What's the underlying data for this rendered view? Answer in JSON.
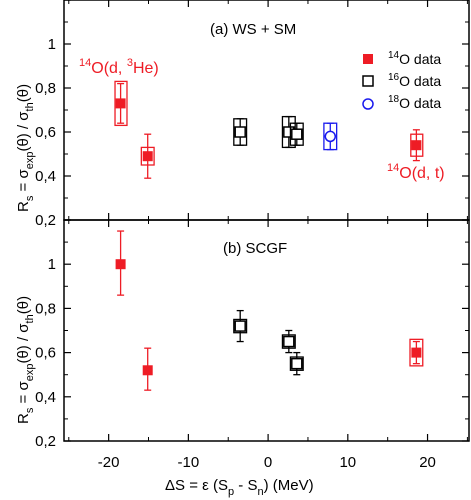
{
  "chart_data": {
    "type": "scatter",
    "xlabel": "ΔS = ε (S",
    "xlabel_sub1": "p",
    "xlabel_mid": " - S",
    "xlabel_sub2": "n",
    "xlabel_end": ") (MeV)",
    "x_ticks": [
      "-20",
      "-10",
      "0",
      "10",
      "20"
    ],
    "xlim": [
      -25.6,
      25.2
    ],
    "panels": [
      {
        "title": "(a) WS + SM",
        "ylim": [
          0.2,
          1.2
        ],
        "y_ticks": [
          "0,2",
          "0,4",
          "0,6",
          "0,8",
          "1"
        ],
        "ylabel": "R",
        "ylabel_rest": " = σ",
        "ylabel_sub_exp": "exp",
        "ylabel_mid": "(θ) / σ",
        "ylabel_sub_th": "th",
        "ylabel_end": "(θ)",
        "annotations": [
          {
            "sup": "14",
            "text": "O(d, ",
            "sup2": "3",
            "text2": "He)"
          },
          {
            "sup": "14",
            "text": "O(d, t)"
          }
        ],
        "legend": {
          "placement": "top-right",
          "entries": [
            {
              "sup": "14",
              "text": "O data"
            },
            {
              "sup": "16",
              "text": "O data"
            },
            {
              "sup": "18",
              "text": "O data"
            }
          ]
        },
        "series": [
          {
            "nucleus": "14O",
            "points": [
              {
                "x": -18.5,
                "y": 0.73,
                "err": [
                  0.64,
                  0.82
                ],
                "box": [
                  -19.2,
                  -17.7,
                  0.63,
                  0.83
                ]
              },
              {
                "x": -15.1,
                "y": 0.49,
                "err": [
                  0.39,
                  0.59
                ],
                "box": [
                  -15.9,
                  -14.3,
                  0.45,
                  0.53
                ]
              },
              {
                "x": 18.6,
                "y": 0.54,
                "err": [
                  0.47,
                  0.61
                ],
                "box": [
                  17.9,
                  19.4,
                  0.49,
                  0.59
                ]
              }
            ]
          },
          {
            "nucleus": "16O",
            "points": [
              {
                "x": -3.5,
                "y": 0.6,
                "err": [
                  0.54,
                  0.66
                ],
                "box": [
                  -4.3,
                  -2.7,
                  0.54,
                  0.66
                ]
              },
              {
                "x": 2.6,
                "y": 0.6,
                "err": [
                  0.53,
                  0.67
                ],
                "box": [
                  1.8,
                  3.4,
                  0.53,
                  0.67
                ]
              },
              {
                "x": 3.6,
                "y": 0.59,
                "err": [
                  0.54,
                  0.64
                ],
                "box": [
                  2.8,
                  4.4,
                  0.54,
                  0.64
                ]
              }
            ]
          },
          {
            "nucleus": "18O",
            "points": [
              {
                "x": 7.8,
                "y": 0.58,
                "err": [
                  0.52,
                  0.64
                ],
                "box": [
                  7.0,
                  8.6,
                  0.52,
                  0.64
                ]
              }
            ]
          }
        ]
      },
      {
        "title": "(b) SCGF",
        "ylim": [
          0.2,
          1.2
        ],
        "y_ticks": [
          "0,2",
          "0,4",
          "0,6",
          "0,8",
          "1"
        ],
        "ylabel": "R",
        "ylabel_rest": " = σ",
        "ylabel_sub_exp": "exp",
        "ylabel_mid": "(θ) / σ",
        "ylabel_sub_th": "th",
        "ylabel_end": "(θ)",
        "series": [
          {
            "nucleus": "14O",
            "points": [
              {
                "x": -18.5,
                "y": 1.0,
                "err": [
                  0.86,
                  1.15
                ],
                "box": [
                  -19.0,
                  -18.0,
                  0.985,
                  1.015
                ]
              },
              {
                "x": -15.1,
                "y": 0.52,
                "err": [
                  0.43,
                  0.62
                ],
                "box": [
                  -15.6,
                  -14.6,
                  0.505,
                  0.535
                ]
              },
              {
                "x": 18.6,
                "y": 0.6,
                "err": [
                  0.55,
                  0.65
                ],
                "box": [
                  17.8,
                  19.4,
                  0.54,
                  0.66
                ]
              }
            ]
          },
          {
            "nucleus": "16O",
            "points": [
              {
                "x": -3.5,
                "y": 0.72,
                "err": [
                  0.65,
                  0.79
                ],
                "box": [
                  -4.3,
                  -2.7,
                  0.69,
                  0.75
                ]
              },
              {
                "x": 2.6,
                "y": 0.65,
                "err": [
                  0.6,
                  0.7
                ],
                "box": [
                  1.8,
                  3.4,
                  0.62,
                  0.68
                ]
              },
              {
                "x": 3.6,
                "y": 0.55,
                "err": [
                  0.5,
                  0.6
                ],
                "box": [
                  2.8,
                  4.4,
                  0.52,
                  0.58
                ]
              }
            ]
          }
        ]
      }
    ],
    "colors": {
      "14O": "#ee1c25",
      "16O": "#000000",
      "18O": "#1a1aee",
      "annotation": "#ee1c25"
    }
  }
}
